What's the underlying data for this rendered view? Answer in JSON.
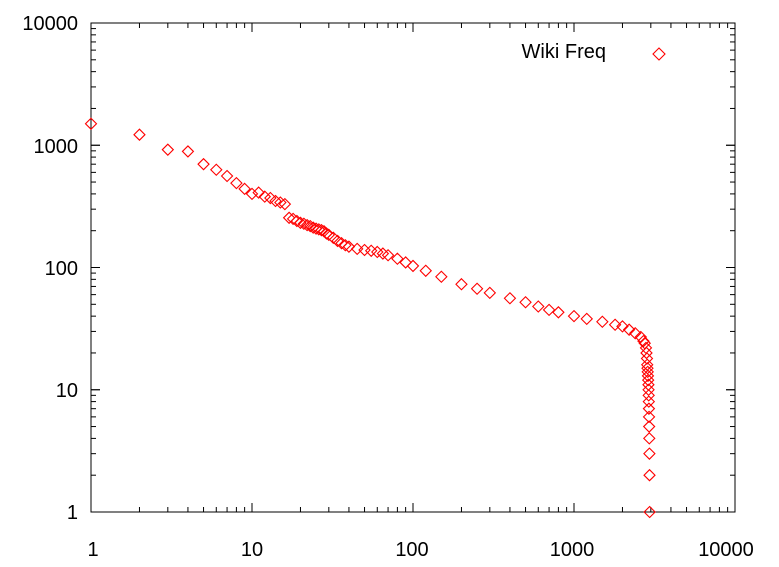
{
  "chart_data": {
    "type": "scatter",
    "title": "",
    "xlabel": "",
    "ylabel": "",
    "x_scale": "log",
    "y_scale": "log",
    "xlim": [
      1,
      10000
    ],
    "ylim": [
      1,
      10000
    ],
    "x_tick_labels": [
      "1",
      "10",
      "100",
      "1000",
      "10000"
    ],
    "y_tick_labels": [
      "1",
      "10",
      "100",
      "1000",
      "10000"
    ],
    "grid": false,
    "legend_position": "top-right",
    "marker": "diamond-open",
    "series": [
      {
        "name": "Wiki Freq",
        "color": "#ff0000",
        "points": [
          [
            1,
            1500
          ],
          [
            2,
            1220
          ],
          [
            3,
            920
          ],
          [
            4,
            890
          ],
          [
            5,
            700
          ],
          [
            6,
            630
          ],
          [
            7,
            560
          ],
          [
            8,
            490
          ],
          [
            9,
            440
          ],
          [
            10,
            400
          ],
          [
            11,
            410
          ],
          [
            12,
            380
          ],
          [
            13,
            370
          ],
          [
            14,
            350
          ],
          [
            15,
            340
          ],
          [
            16,
            330
          ],
          [
            17,
            255
          ],
          [
            18,
            250
          ],
          [
            19,
            240
          ],
          [
            20,
            232
          ],
          [
            21,
            228
          ],
          [
            22,
            222
          ],
          [
            23,
            218
          ],
          [
            24,
            212
          ],
          [
            25,
            208
          ],
          [
            26,
            205
          ],
          [
            27,
            202
          ],
          [
            28,
            198
          ],
          [
            29,
            190
          ],
          [
            30,
            185
          ],
          [
            32,
            175
          ],
          [
            34,
            165
          ],
          [
            36,
            158
          ],
          [
            38,
            152
          ],
          [
            40,
            148
          ],
          [
            45,
            142
          ],
          [
            50,
            139
          ],
          [
            55,
            137
          ],
          [
            60,
            134
          ],
          [
            65,
            130
          ],
          [
            70,
            126
          ],
          [
            80,
            118
          ],
          [
            90,
            110
          ],
          [
            100,
            103
          ],
          [
            120,
            94
          ],
          [
            150,
            84
          ],
          [
            200,
            73
          ],
          [
            250,
            67
          ],
          [
            300,
            62
          ],
          [
            400,
            56
          ],
          [
            500,
            52
          ],
          [
            600,
            48
          ],
          [
            700,
            45
          ],
          [
            800,
            43
          ],
          [
            1000,
            40
          ],
          [
            1200,
            38
          ],
          [
            1500,
            36
          ],
          [
            1800,
            34
          ],
          [
            2000,
            33
          ],
          [
            2200,
            31
          ],
          [
            2400,
            29
          ],
          [
            2600,
            27
          ],
          [
            2700,
            25
          ],
          [
            2750,
            24
          ],
          [
            2800,
            22
          ],
          [
            2820,
            20
          ],
          [
            2840,
            18
          ],
          [
            2850,
            16
          ],
          [
            2860,
            15
          ],
          [
            2870,
            14
          ],
          [
            2880,
            13
          ],
          [
            2890,
            12
          ],
          [
            2900,
            11
          ],
          [
            2905,
            10
          ],
          [
            2910,
            9
          ],
          [
            2915,
            8
          ],
          [
            2920,
            7
          ],
          [
            2925,
            6
          ],
          [
            2930,
            5
          ],
          [
            2935,
            4
          ],
          [
            2940,
            3
          ],
          [
            2945,
            2
          ],
          [
            2950,
            1
          ]
        ]
      }
    ]
  }
}
